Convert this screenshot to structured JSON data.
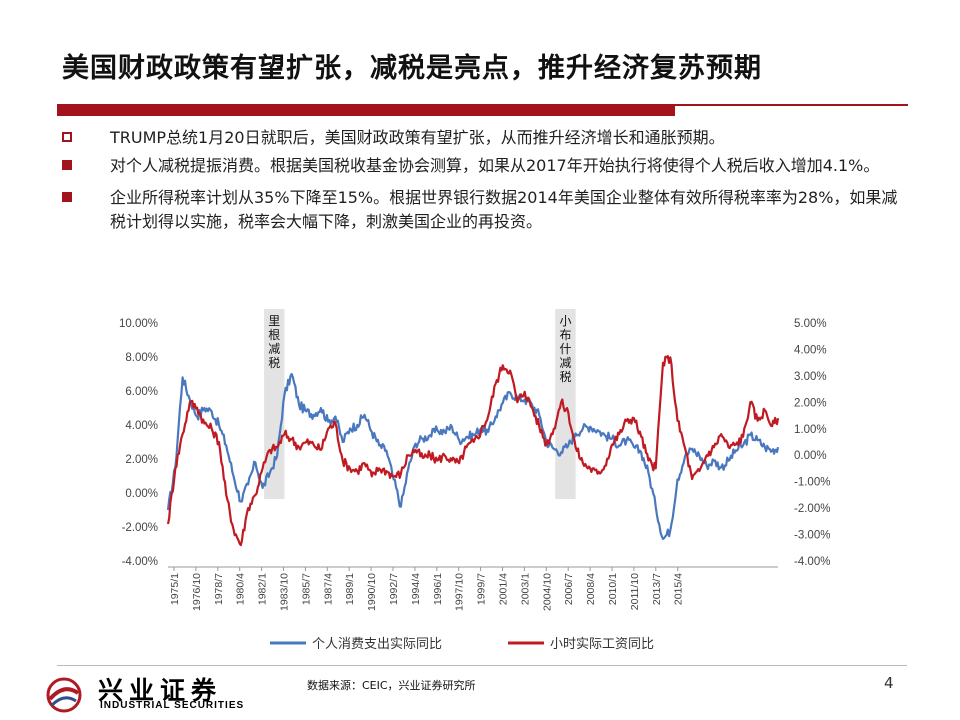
{
  "title": "美国财政政策有望扩张，减税是亮点，推升经济复苏预期",
  "bullets": [
    {
      "marker": "hollow",
      "text": "TRUMP总统1月20日就职后，美国财政政策有望扩张，从而推升经济增长和通胀预期。"
    },
    {
      "marker": "solid",
      "text": "对个人减税提振消费。根据美国税收基金协会测算，如果从2017年开始执行将使得个人税后收入增加4.1%。"
    },
    {
      "marker": "solid",
      "text": "企业所得税率计划从35%下降至15%。根据世界银行数据2014年美国企业整体有效所得税率率为28%，如果减税计划得以实施，税率会大幅下降，刺激美国企业的再投资。"
    }
  ],
  "chart_data": {
    "type": "line",
    "title": "",
    "xlabel": "",
    "ylabel_left": "",
    "ylabel_right": "",
    "x_tick_labels": [
      "1975/1",
      "1976/10",
      "1978/7",
      "1980/4",
      "1982/1",
      "1983/10",
      "1985/7",
      "1987/4",
      "1989/1",
      "1990/10",
      "1992/7",
      "1994/4",
      "1996/1",
      "1997/10",
      "1999/7",
      "2001/4",
      "2003/1",
      "2004/10",
      "2006/7",
      "2008/4",
      "2010/1",
      "2011/10",
      "2013/7",
      "2015/4"
    ],
    "left_axis": {
      "ticks": [
        "10.00%",
        "8.00%",
        "6.00%",
        "4.00%",
        "2.00%",
        "0.00%",
        "-2.00%",
        "-4.00%"
      ],
      "ylim": [
        -4,
        10
      ]
    },
    "right_axis": {
      "ticks": [
        "5.00%",
        "4.00%",
        "3.00%",
        "2.00%",
        "1.00%",
        "0.00%",
        "-1.00%",
        "-2.00%",
        "-3.00%",
        "-4.00%"
      ],
      "ylim": [
        -4,
        5
      ]
    },
    "xlim": [
      1975.0,
      2016.9
    ],
    "annotations": [
      {
        "label": "里根减税",
        "start": 1981.6,
        "end": 1983.0
      },
      {
        "label": "小布什减税",
        "start": 2001.6,
        "end": 2003.0
      }
    ],
    "series": [
      {
        "name": "个人消费支出实际同比",
        "axis": "left",
        "color": "#4a78be",
        "x": [
          1975.0,
          1975.5,
          1976.0,
          1976.5,
          1977.0,
          1977.5,
          1978.0,
          1978.5,
          1979.0,
          1979.5,
          1980.0,
          1980.5,
          1981.0,
          1981.5,
          1982.0,
          1982.5,
          1983.0,
          1983.5,
          1984.0,
          1984.5,
          1985.0,
          1985.5,
          1986.0,
          1986.5,
          1987.0,
          1987.5,
          1988.0,
          1988.5,
          1989.0,
          1989.5,
          1990.0,
          1990.5,
          1991.0,
          1991.5,
          1992.0,
          1992.5,
          1993.0,
          1993.5,
          1994.0,
          1994.5,
          1995.0,
          1995.5,
          1996.0,
          1996.5,
          1997.0,
          1997.5,
          1998.0,
          1998.5,
          1999.0,
          1999.5,
          2000.0,
          2000.5,
          2001.0,
          2001.5,
          2002.0,
          2002.5,
          2003.0,
          2003.5,
          2004.0,
          2004.5,
          2005.0,
          2005.5,
          2006.0,
          2006.5,
          2007.0,
          2007.5,
          2008.0,
          2008.5,
          2009.0,
          2009.5,
          2010.0,
          2010.5,
          2011.0,
          2011.5,
          2012.0,
          2012.5,
          2013.0,
          2013.5,
          2014.0,
          2014.5,
          2015.0,
          2015.5,
          2016.0,
          2016.5,
          2016.9
        ],
        "values": [
          -1.0,
          1.5,
          6.8,
          5.5,
          4.5,
          5.0,
          4.8,
          4.0,
          2.8,
          1.0,
          -0.5,
          0.5,
          1.8,
          0.3,
          1.2,
          2.2,
          5.8,
          7.0,
          5.2,
          4.8,
          4.6,
          5.0,
          4.2,
          4.5,
          3.0,
          3.8,
          4.0,
          4.6,
          3.6,
          2.8,
          2.5,
          0.8,
          -0.8,
          1.4,
          2.9,
          3.2,
          3.4,
          3.7,
          3.6,
          3.9,
          3.1,
          3.3,
          3.4,
          3.8,
          3.6,
          4.5,
          5.3,
          5.9,
          5.6,
          5.5,
          5.2,
          4.6,
          3.0,
          2.6,
          2.4,
          2.8,
          3.5,
          3.8,
          3.9,
          3.7,
          3.4,
          3.2,
          2.8,
          3.1,
          2.7,
          2.4,
          1.2,
          -0.8,
          -2.7,
          -2.2,
          0.8,
          2.1,
          2.6,
          2.2,
          1.6,
          1.9,
          1.5,
          1.9,
          2.5,
          2.8,
          3.4,
          3.1,
          2.7,
          2.5,
          2.7
        ]
      },
      {
        "name": "小时实际工资同比",
        "axis": "right",
        "color": "#c01b22",
        "x": [
          1975.0,
          1975.5,
          1976.0,
          1976.5,
          1977.0,
          1977.5,
          1978.0,
          1978.5,
          1979.0,
          1979.5,
          1980.0,
          1980.5,
          1981.0,
          1981.5,
          1982.0,
          1982.5,
          1983.0,
          1983.5,
          1984.0,
          1984.5,
          1985.0,
          1985.5,
          1986.0,
          1986.5,
          1987.0,
          1987.5,
          1988.0,
          1988.5,
          1989.0,
          1989.5,
          1990.0,
          1990.5,
          1991.0,
          1991.5,
          1992.0,
          1992.5,
          1993.0,
          1993.5,
          1994.0,
          1994.5,
          1995.0,
          1995.5,
          1996.0,
          1996.5,
          1997.0,
          1997.5,
          1998.0,
          1998.5,
          1999.0,
          1999.5,
          2000.0,
          2000.5,
          2001.0,
          2001.5,
          2002.0,
          2002.5,
          2003.0,
          2003.5,
          2004.0,
          2004.5,
          2005.0,
          2005.5,
          2006.0,
          2006.5,
          2007.0,
          2007.5,
          2008.0,
          2008.5,
          2009.0,
          2009.5,
          2010.0,
          2010.5,
          2011.0,
          2011.5,
          2012.0,
          2012.5,
          2013.0,
          2013.5,
          2014.0,
          2014.5,
          2015.0,
          2015.5,
          2016.0,
          2016.5,
          2016.9
        ],
        "values": [
          -2.6,
          -0.5,
          0.8,
          2.0,
          1.8,
          1.2,
          1.0,
          0.5,
          -1.5,
          -2.8,
          -3.4,
          -2.0,
          -1.5,
          -0.5,
          0.2,
          0.3,
          0.8,
          0.6,
          0.3,
          0.5,
          0.4,
          0.2,
          1.0,
          1.2,
          -0.2,
          -0.5,
          -0.6,
          -0.3,
          -0.8,
          -0.5,
          -0.6,
          -0.8,
          -0.7,
          0.0,
          0.2,
          -0.1,
          0.0,
          -0.2,
          0.0,
          -0.2,
          -0.3,
          0.3,
          0.5,
          0.9,
          1.5,
          2.7,
          3.4,
          3.2,
          2.0,
          2.4,
          1.8,
          1.1,
          0.4,
          1.0,
          2.0,
          1.6,
          0.3,
          -0.3,
          -0.5,
          -0.7,
          -0.4,
          0.4,
          0.8,
          1.3,
          1.4,
          0.7,
          -0.2,
          -0.5,
          3.5,
          3.7,
          1.3,
          0.3,
          -0.9,
          -0.6,
          0.0,
          0.3,
          0.8,
          0.3,
          0.4,
          0.7,
          2.0,
          1.3,
          1.7,
          1.1,
          1.4
        ]
      }
    ],
    "legend": [
      {
        "name": "个人消费支出实际同比",
        "color": "#4a78be"
      },
      {
        "name": "小时实际工资同比",
        "color": "#c01b22"
      }
    ],
    "legend_placement": "bottom",
    "grid": false
  },
  "footer": {
    "source": "数据来源：CEIC，兴业证券研究所",
    "page_number": "4",
    "logo_cn": "兴业证券",
    "logo_en": "INDUSTRIAL SECURITIES"
  }
}
